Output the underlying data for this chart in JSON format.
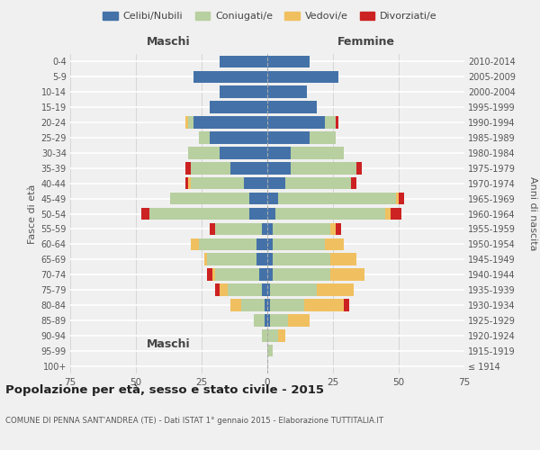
{
  "age_groups": [
    "100+",
    "95-99",
    "90-94",
    "85-89",
    "80-84",
    "75-79",
    "70-74",
    "65-69",
    "60-64",
    "55-59",
    "50-54",
    "45-49",
    "40-44",
    "35-39",
    "30-34",
    "25-29",
    "20-24",
    "15-19",
    "10-14",
    "5-9",
    "0-4"
  ],
  "birth_years": [
    "≤ 1914",
    "1915-1919",
    "1920-1924",
    "1925-1929",
    "1930-1934",
    "1935-1939",
    "1940-1944",
    "1945-1949",
    "1950-1954",
    "1955-1959",
    "1960-1964",
    "1965-1969",
    "1970-1974",
    "1975-1979",
    "1980-1984",
    "1985-1989",
    "1990-1994",
    "1995-1999",
    "2000-2004",
    "2005-2009",
    "2010-2014"
  ],
  "colors": {
    "celibe": "#4472a8",
    "coniugato": "#b8cfa0",
    "vedovo": "#f0c060",
    "divorziato": "#cc2222"
  },
  "males": {
    "celibe": [
      0,
      0,
      0,
      1,
      1,
      2,
      3,
      4,
      4,
      2,
      7,
      7,
      9,
      14,
      18,
      22,
      28,
      22,
      18,
      28,
      18
    ],
    "coniugato": [
      0,
      0,
      2,
      4,
      9,
      13,
      17,
      19,
      22,
      18,
      38,
      30,
      20,
      15,
      12,
      4,
      2,
      0,
      0,
      0,
      0
    ],
    "vedovo": [
      0,
      0,
      0,
      0,
      4,
      3,
      1,
      1,
      3,
      0,
      0,
      0,
      1,
      0,
      0,
      0,
      1,
      0,
      0,
      0,
      0
    ],
    "divorziato": [
      0,
      0,
      0,
      0,
      0,
      2,
      2,
      0,
      0,
      2,
      3,
      0,
      1,
      2,
      0,
      0,
      0,
      0,
      0,
      0,
      0
    ]
  },
  "females": {
    "nubile": [
      0,
      0,
      0,
      1,
      1,
      1,
      2,
      2,
      2,
      2,
      3,
      4,
      7,
      9,
      9,
      16,
      22,
      19,
      15,
      27,
      16
    ],
    "coniugata": [
      0,
      2,
      4,
      7,
      13,
      18,
      22,
      22,
      20,
      22,
      42,
      45,
      25,
      25,
      20,
      10,
      4,
      0,
      0,
      0,
      0
    ],
    "vedova": [
      0,
      0,
      3,
      8,
      15,
      14,
      13,
      10,
      7,
      2,
      2,
      1,
      0,
      0,
      0,
      0,
      0,
      0,
      0,
      0,
      0
    ],
    "divorziata": [
      0,
      0,
      0,
      0,
      2,
      0,
      0,
      0,
      0,
      2,
      4,
      2,
      2,
      2,
      0,
      0,
      1,
      0,
      0,
      0,
      0
    ]
  },
  "xlim": 75,
  "title": "Popolazione per età, sesso e stato civile - 2015",
  "subtitle": "COMUNE DI PENNA SANT'ANDREA (TE) - Dati ISTAT 1° gennaio 2015 - Elaborazione TUTTITALIA.IT",
  "ylabel_left": "Fasce di età",
  "ylabel_right": "Anni di nascita",
  "label_maschi": "Maschi",
  "label_femmine": "Femmine",
  "legend_labels": [
    "Celibi/Nubili",
    "Coniugati/e",
    "Vedovi/e",
    "Divorziati/e"
  ],
  "background_color": "#f0f0f0"
}
